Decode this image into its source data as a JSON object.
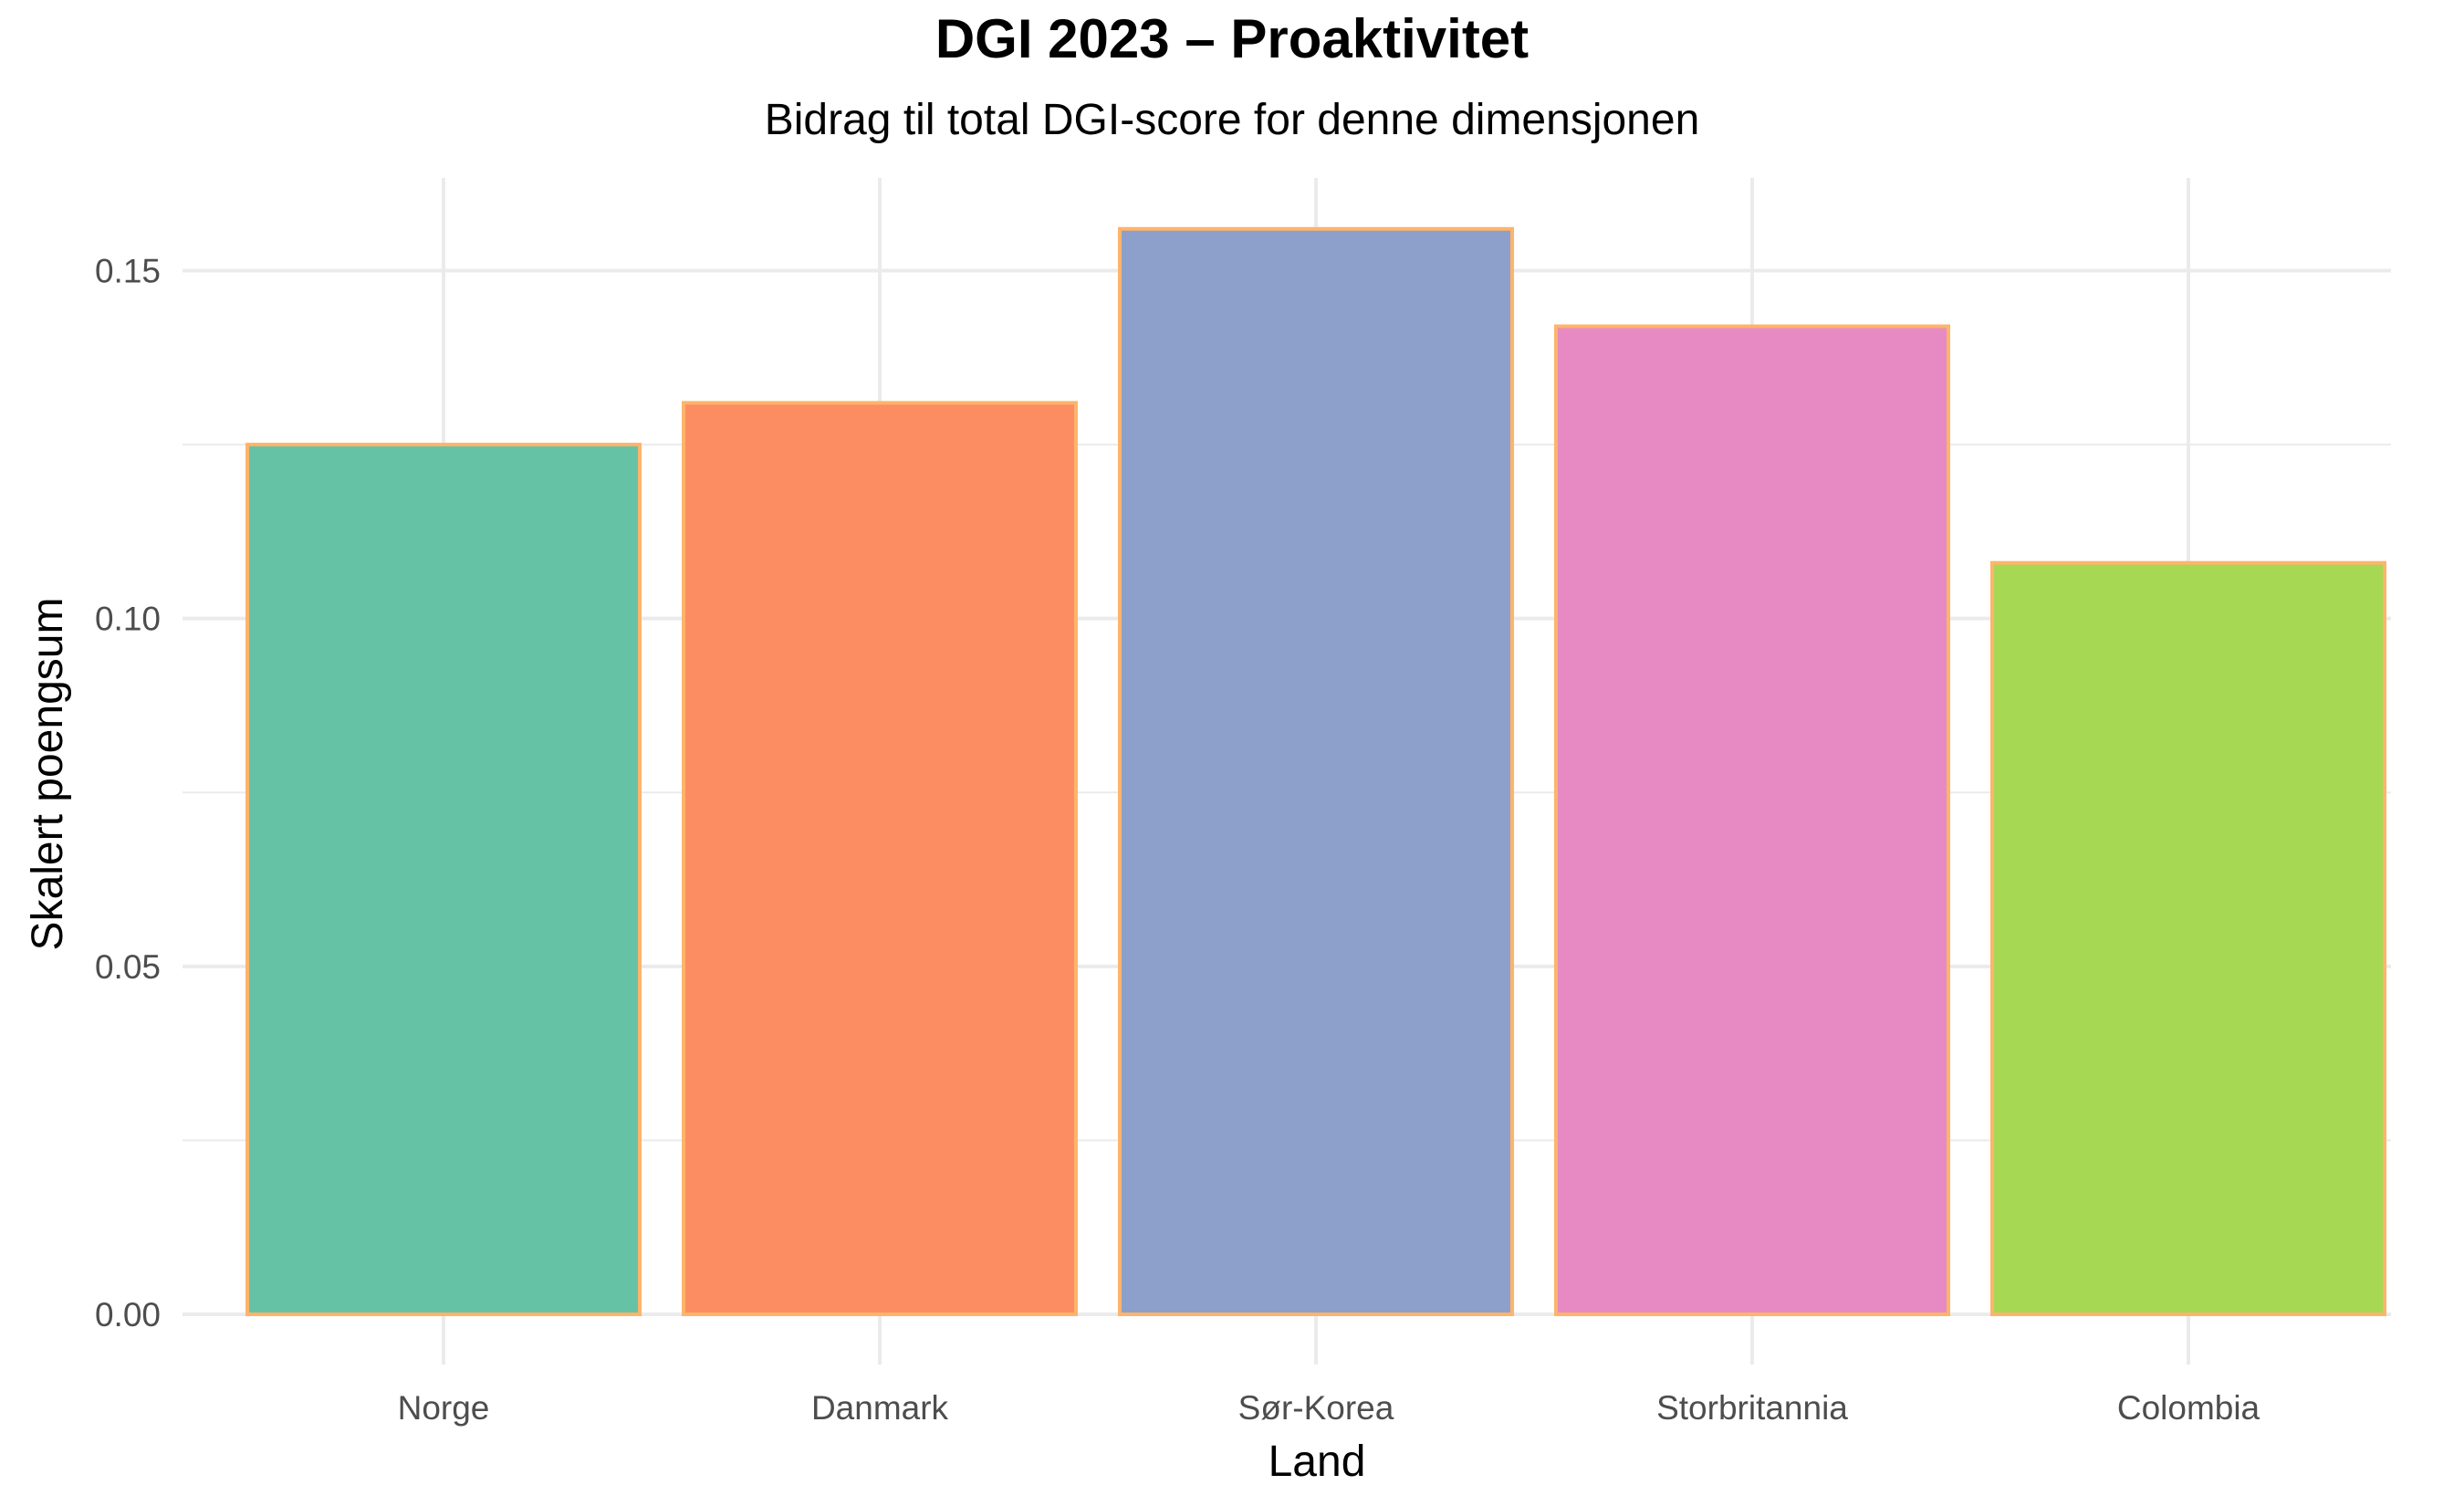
{
  "chart_data": {
    "type": "bar",
    "title": "DGI 2023 – Proaktivitet",
    "subtitle": "Bidrag til total DGI-score for denne dimensjonen",
    "xlabel": "Land",
    "ylabel": "Skalert poengsum",
    "categories": [
      "Norge",
      "Danmark",
      "Sør-Korea",
      "Storbritannia",
      "Colombia"
    ],
    "values": [
      0.125,
      0.131,
      0.156,
      0.142,
      0.108
    ],
    "colors": [
      "#66c2a5",
      "#fc8d62",
      "#8da0cb",
      "#e78ac3",
      "#a6d854"
    ],
    "bar_outline_color": "#fdb46b",
    "ylim": [
      0,
      0.16
    ],
    "yticks": [
      0.0,
      0.05,
      0.1,
      0.15
    ],
    "ytick_labels": [
      "0.00",
      "0.05",
      "0.10",
      "0.15"
    ],
    "grid": true,
    "legend": "none"
  }
}
